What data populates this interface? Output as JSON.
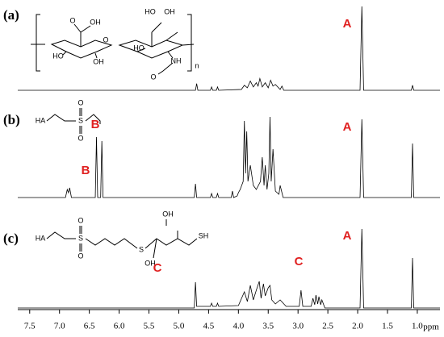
{
  "chart_data": [
    {
      "type": "line",
      "label": "(a)",
      "color": "#000000",
      "xlim": [
        7.7,
        0.62
      ],
      "ylim": [
        0,
        100
      ],
      "annotations": [
        "A"
      ],
      "structure_labels": [
        "OH",
        "O",
        "HO",
        "OH",
        "O",
        "HO",
        "OH",
        "O",
        "HO",
        "NH",
        "O",
        "n"
      ],
      "x": [
        7.7,
        4.72,
        4.7,
        4.68,
        4.47,
        4.45,
        4.43,
        4.37,
        4.35,
        4.33,
        3.95,
        3.9,
        3.85,
        3.8,
        3.75,
        3.7,
        3.67,
        3.64,
        3.6,
        3.55,
        3.5,
        3.46,
        3.42,
        3.38,
        3.3,
        3.27,
        3.24,
        1.96,
        1.93,
        1.9,
        1.1,
        1.08,
        1.06,
        0.62
      ],
      "values": [
        0,
        0,
        8,
        0,
        0,
        4,
        0,
        0,
        4,
        0,
        1,
        6,
        3,
        11,
        4,
        9,
        5,
        14,
        4,
        9,
        3,
        12,
        5,
        7,
        1,
        5,
        0,
        0,
        100,
        0,
        0,
        6,
        0,
        0
      ]
    },
    {
      "type": "line",
      "label": "(b)",
      "color": "#000000",
      "xlim": [
        7.7,
        0.62
      ],
      "ylim": [
        0,
        100
      ],
      "annotations": [
        "B",
        "B",
        "A"
      ],
      "structure_labels": [
        "HA",
        "S",
        "O",
        "O"
      ],
      "x": [
        7.7,
        6.9,
        6.87,
        6.85,
        6.83,
        6.8,
        6.4,
        6.38,
        6.36,
        6.31,
        6.29,
        6.27,
        4.74,
        4.72,
        4.7,
        4.47,
        4.45,
        4.43,
        4.37,
        4.35,
        4.33,
        4.12,
        4.1,
        4.08,
        4.02,
        4.0,
        3.97,
        3.92,
        3.9,
        3.88,
        3.86,
        3.84,
        3.8,
        3.75,
        3.7,
        3.63,
        3.6,
        3.57,
        3.55,
        3.52,
        3.49,
        3.47,
        3.45,
        3.42,
        3.38,
        3.32,
        3.3,
        3.25,
        1.96,
        1.93,
        1.9,
        1.1,
        1.08,
        1.06,
        0.62
      ],
      "values": [
        0,
        0,
        10,
        6,
        12,
        0,
        0,
        75,
        0,
        0,
        70,
        0,
        0,
        17,
        0,
        0,
        5,
        0,
        0,
        5,
        0,
        0,
        8,
        0,
        2,
        6,
        10,
        20,
        95,
        30,
        82,
        20,
        40,
        15,
        10,
        20,
        50,
        15,
        40,
        10,
        30,
        100,
        20,
        60,
        8,
        4,
        15,
        0,
        0,
        97,
        0,
        0,
        67,
        0,
        0
      ]
    },
    {
      "type": "line",
      "label": "(c)",
      "color": "#000000",
      "xlim": [
        7.7,
        0.62
      ],
      "ylim": [
        0,
        100
      ],
      "annotations": [
        "C",
        "C",
        "A"
      ],
      "structure_labels": [
        "HA",
        "S",
        "O",
        "O",
        "S",
        "OH",
        "OH",
        "SH"
      ],
      "x": [
        7.7,
        4.74,
        4.72,
        4.7,
        4.47,
        4.45,
        4.43,
        4.37,
        4.35,
        4.33,
        4.0,
        3.9,
        3.85,
        3.8,
        3.75,
        3.7,
        3.65,
        3.62,
        3.58,
        3.55,
        3.5,
        3.47,
        3.44,
        3.38,
        3.3,
        3.2,
        2.98,
        2.95,
        2.92,
        2.78,
        2.75,
        2.72,
        2.7,
        2.67,
        2.65,
        2.62,
        2.6,
        2.55,
        1.96,
        1.93,
        1.9,
        1.1,
        1.08,
        1.06,
        0.62
      ],
      "values": [
        0,
        0,
        32,
        2,
        2,
        6,
        2,
        2,
        6,
        2,
        3,
        20,
        8,
        28,
        10,
        22,
        33,
        12,
        30,
        15,
        25,
        28,
        10,
        5,
        10,
        2,
        2,
        22,
        2,
        2,
        12,
        4,
        16,
        5,
        14,
        4,
        10,
        0,
        0,
        98,
        0,
        0,
        62,
        0,
        0
      ],
      "xlabel": "ppm",
      "xticks": [
        7.5,
        {
          "value": 7,
          "label": "7.0"
        },
        6.5,
        {
          "value": 6,
          "label": "6.0"
        },
        5.5,
        {
          "value": 5,
          "label": "5.0"
        },
        4.5,
        {
          "value": 4,
          "label": "4.0"
        },
        3.5,
        {
          "value": 3,
          "label": "3.0"
        },
        2.5,
        {
          "value": 2,
          "label": "2.0"
        },
        1.5,
        {
          "value": 1,
          "label": "1.0"
        }
      ]
    }
  ]
}
